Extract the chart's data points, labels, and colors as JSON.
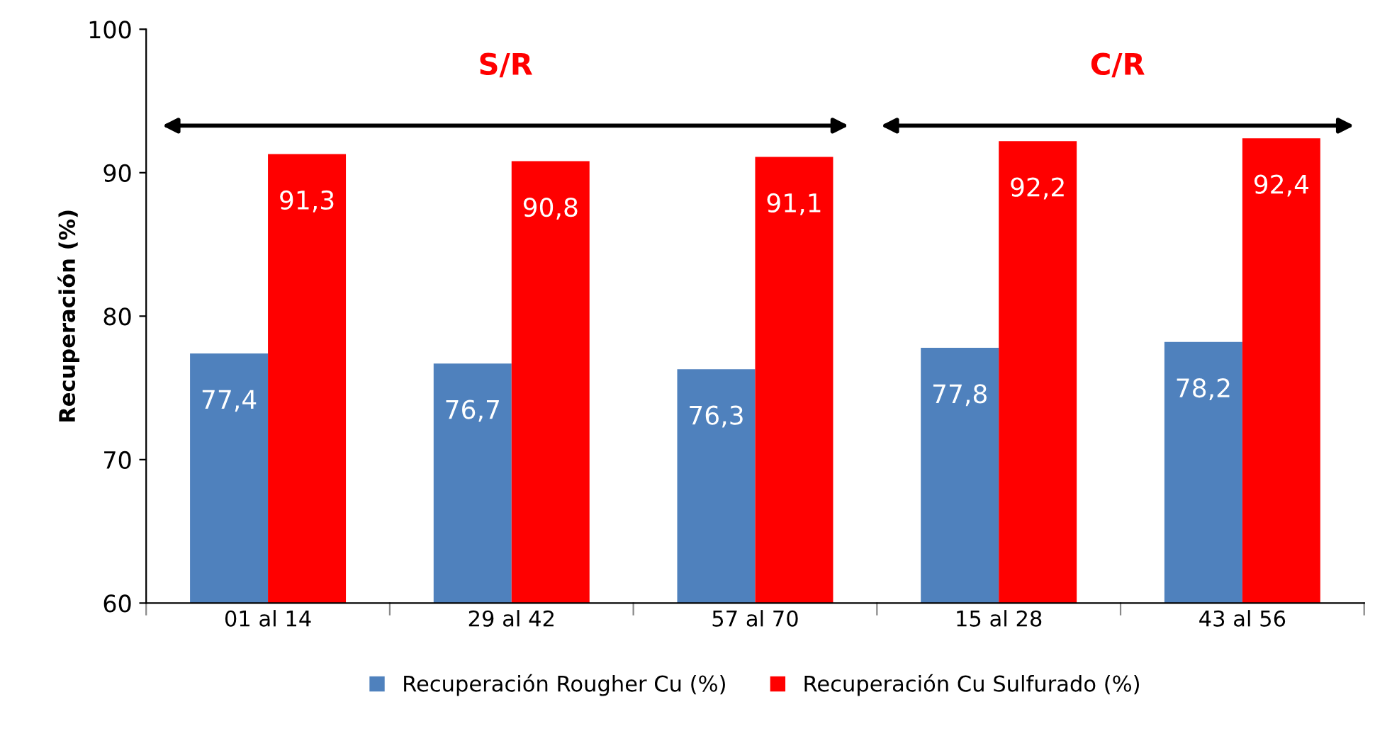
{
  "chart_data": {
    "type": "bar",
    "ylabel": "Recuperación (%)",
    "categories": [
      "01 al 14",
      "29 al 42",
      "57 al 70",
      "15 al 28",
      "43 al 56"
    ],
    "series": [
      {
        "name": "Recuperación Rougher Cu (%)",
        "color": "#4f81bd",
        "values": [
          77.4,
          76.7,
          76.3,
          77.8,
          78.2
        ],
        "value_labels": [
          "77,4",
          "76,7",
          "76,3",
          "77,8",
          "78,2"
        ]
      },
      {
        "name": "Recuperación Cu Sulfurado (%)",
        "color": "#ff0000",
        "values": [
          91.3,
          90.8,
          91.1,
          92.2,
          92.4
        ],
        "value_labels": [
          "91,3",
          "90,8",
          "91,1",
          "92,2",
          "92,4"
        ]
      }
    ],
    "ylim": [
      60,
      100
    ],
    "yticks": [
      60,
      70,
      80,
      90,
      100
    ],
    "grid": false,
    "legend": "bottom",
    "annotations": [
      "S/R",
      "C/R"
    ]
  }
}
